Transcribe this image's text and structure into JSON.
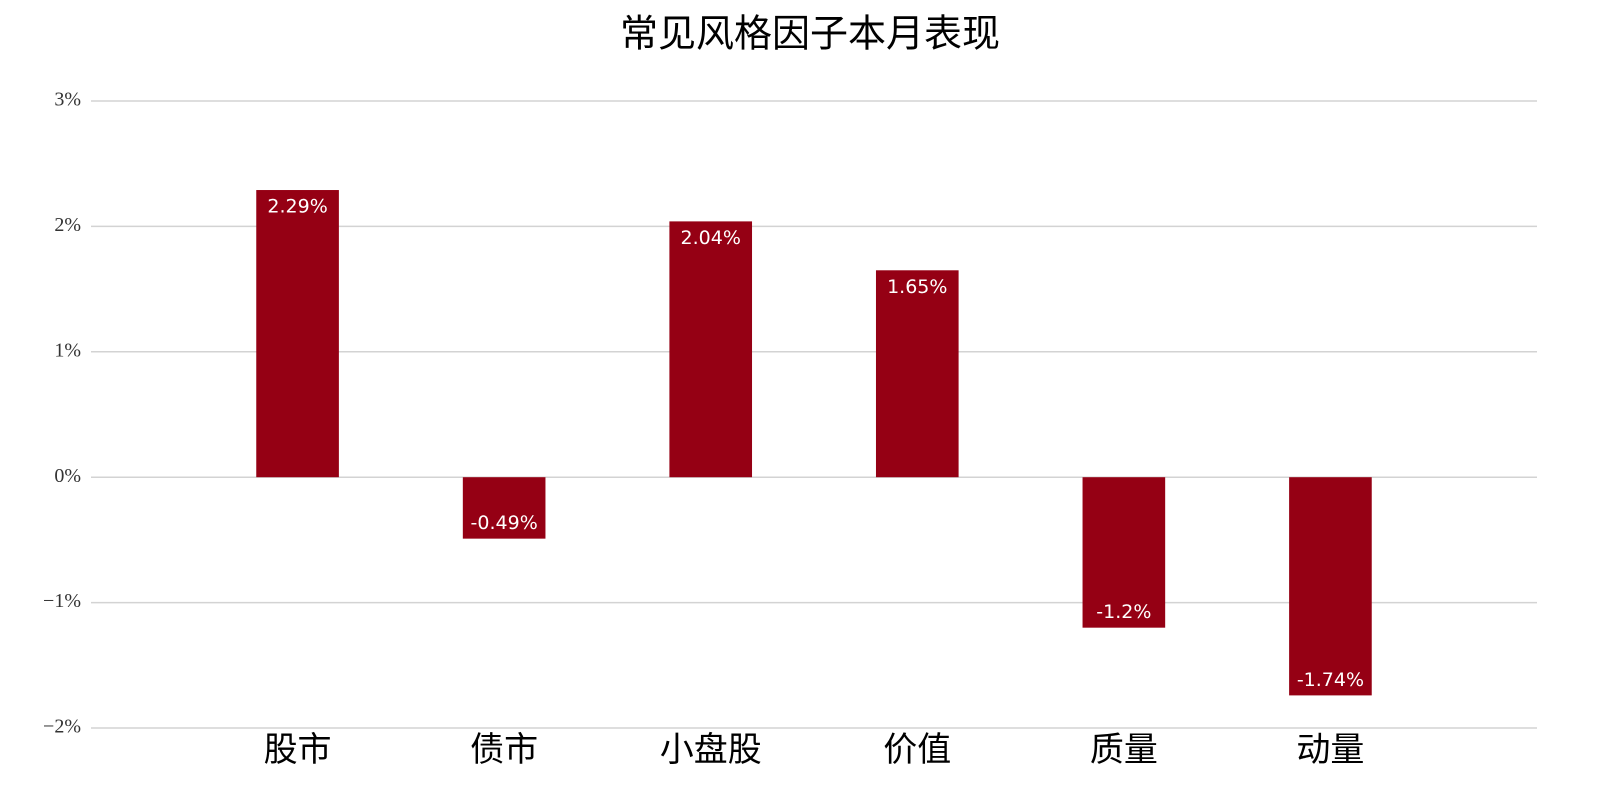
{
  "chart_data": {
    "type": "bar",
    "title": "常见风格因子本月表现",
    "categories": [
      "股市",
      "债市",
      "小盘股",
      "价值",
      "质量",
      "动量"
    ],
    "values": [
      2.29,
      -0.49,
      2.04,
      1.65,
      -1.2,
      -1.74
    ],
    "value_labels": [
      "2.29%",
      "-0.49%",
      "2.04%",
      "1.65%",
      "-1.2%",
      "-1.74%"
    ],
    "color": "#950014",
    "ylim": [
      -2,
      3
    ],
    "yticks": [
      {
        "value": -2,
        "label": "−2%"
      },
      {
        "value": -1,
        "label": "−1%"
      },
      {
        "value": 0,
        "label": "0%"
      },
      {
        "value": 1,
        "label": "1%"
      },
      {
        "value": 2,
        "label": "2%"
      },
      {
        "value": 3,
        "label": "3%"
      }
    ],
    "grid": true
  }
}
